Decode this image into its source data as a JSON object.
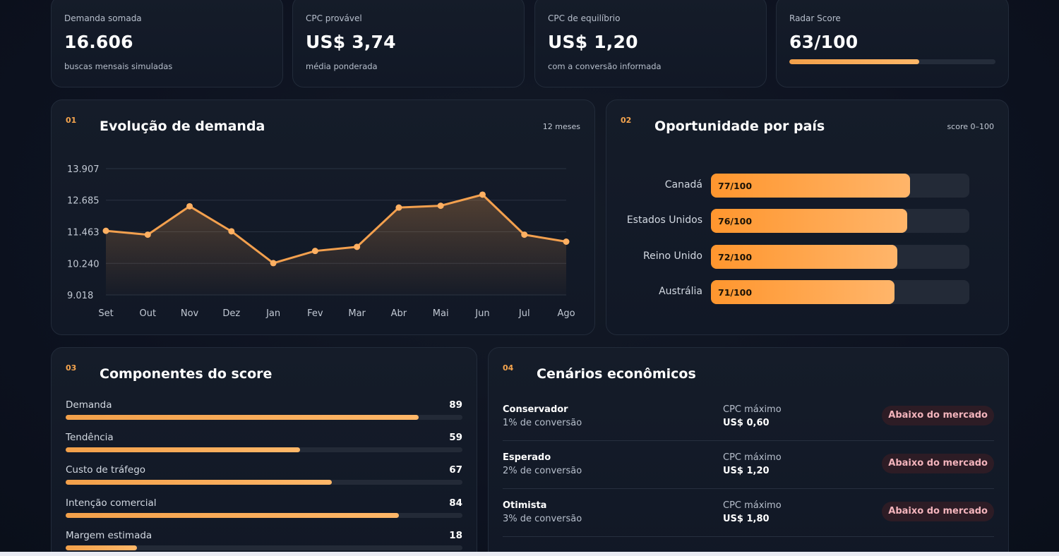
{
  "stats": [
    {
      "label": "Demanda somada",
      "value": "16.606",
      "sub": "buscas mensais simuladas"
    },
    {
      "label": "CPC provável",
      "value": "US$ 3,74",
      "sub": "média ponderada"
    },
    {
      "label": "CPC de equilíbrio",
      "value": "US$ 1,20",
      "sub": "com a conversão informada"
    },
    {
      "label": "Radar Score",
      "value": "63/100",
      "progress": 0.63
    }
  ],
  "demand": {
    "number": "01",
    "title": "Evolução de demanda",
    "meta": "12 meses"
  },
  "countries": {
    "number": "02",
    "title": "Oportunidade por país",
    "meta": "score 0–100",
    "items": [
      {
        "name": "Canadá",
        "label": "77/100",
        "score": 77
      },
      {
        "name": "Estados Unidos",
        "label": "76/100",
        "score": 76
      },
      {
        "name": "Reino Unido",
        "label": "72/100",
        "score": 72
      },
      {
        "name": "Austrália",
        "label": "71/100",
        "score": 71
      }
    ]
  },
  "components": {
    "number": "03",
    "title": "Componentes do score",
    "items": [
      {
        "label": "Demanda",
        "value": "89",
        "score": 89
      },
      {
        "label": "Tendência",
        "value": "59",
        "score": 59
      },
      {
        "label": "Custo de tráfego",
        "value": "67",
        "score": 67
      },
      {
        "label": "Intenção comercial",
        "value": "84",
        "score": 84
      },
      {
        "label": "Margem estimada",
        "value": "18",
        "score": 18
      }
    ]
  },
  "scenarios": {
    "number": "04",
    "title": "Cenários econômicos",
    "items": [
      {
        "name": "Conservador",
        "conversion": "1% de conversão",
        "cpc_label": "CPC máximo",
        "cpc_value": "US$ 0,60",
        "badge": "Abaixo do mercado"
      },
      {
        "name": "Esperado",
        "conversion": "2% de conversão",
        "cpc_label": "CPC máximo",
        "cpc_value": "US$ 1,20",
        "badge": "Abaixo do mercado"
      },
      {
        "name": "Otimista",
        "conversion": "3% de conversão",
        "cpc_label": "CPC máximo",
        "cpc_value": "US$ 1,80",
        "badge": "Abaixo do mercado"
      }
    ]
  },
  "colors": {
    "accent": "#f6a54e",
    "line": "#f3a04e",
    "badge_text": "#f3b4bc",
    "card_bg": "#151c29"
  },
  "chart_data": {
    "type": "line",
    "title": "Evolução de demanda",
    "categories": [
      "Set",
      "Out",
      "Nov",
      "Dez",
      "Jan",
      "Fev",
      "Mar",
      "Abr",
      "Mai",
      "Jun",
      "Jul",
      "Ago"
    ],
    "values": [
      11500,
      11350,
      12450,
      11480,
      10250,
      10720,
      10880,
      12400,
      12470,
      12900,
      11350,
      11080
    ],
    "y_ticks": [
      "13.907",
      "12.685",
      "11.463",
      "10.240",
      "9.018"
    ],
    "y_tick_values": [
      13907,
      12685,
      11463,
      10240,
      9018
    ],
    "ylim": [
      9018,
      13907
    ],
    "xlabel": "",
    "ylabel": "",
    "grid": true,
    "legend": "none"
  }
}
